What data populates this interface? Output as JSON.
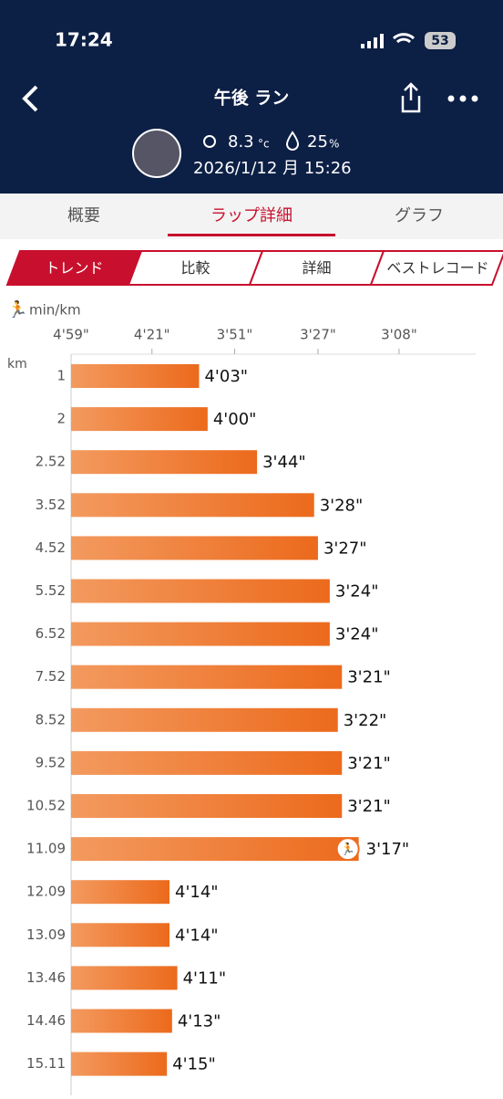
{
  "status_bar": {
    "time": "17:24",
    "battery": "53"
  },
  "header": {
    "title": "午後 ラン",
    "temperature": "8.3",
    "temperature_unit": "°c",
    "humidity": "25",
    "humidity_unit": "%",
    "datetime": "2026/1/12 月 15:26"
  },
  "tabs": [
    "概要",
    "ラップ詳細",
    "グラフ"
  ],
  "active_tab": 1,
  "segments": [
    "トレンド",
    "比較",
    "詳細",
    "ベストレコード"
  ],
  "active_segment": 0,
  "chart_data": {
    "type": "bar",
    "orientation": "horizontal",
    "x_label": "min/km",
    "y_label": "km",
    "scale": "reciprocal",
    "xlim": [
      299,
      173
    ],
    "xticks": [
      {
        "value": 299,
        "label": "4'59\""
      },
      {
        "value": 261,
        "label": "4'21\""
      },
      {
        "value": 231,
        "label": "3'51\""
      },
      {
        "value": 207,
        "label": "3'27\""
      },
      {
        "value": 188,
        "label": "3'08\""
      }
    ],
    "categories": [
      "1",
      "2",
      "2.52",
      "3.52",
      "4.52",
      "5.52",
      "6.52",
      "7.52",
      "8.52",
      "9.52",
      "10.52",
      "11.09",
      "12.09",
      "13.09",
      "13.46",
      "14.46",
      "15.11"
    ],
    "values": [
      243,
      240,
      224,
      208,
      207,
      204,
      204,
      201,
      202,
      201,
      201,
      197,
      254,
      254,
      251,
      253,
      255
    ],
    "value_labels": [
      "4'03\"",
      "4'00\"",
      "3'44\"",
      "3'28\"",
      "3'27\"",
      "3'24\"",
      "3'24\"",
      "3'21\"",
      "3'22\"",
      "3'21\"",
      "3'21\"",
      "3'17\"",
      "4'14\"",
      "4'14\"",
      "4'11\"",
      "4'13\"",
      "4'15\""
    ],
    "highlight_index": 11,
    "color": "#ee6b1f"
  }
}
